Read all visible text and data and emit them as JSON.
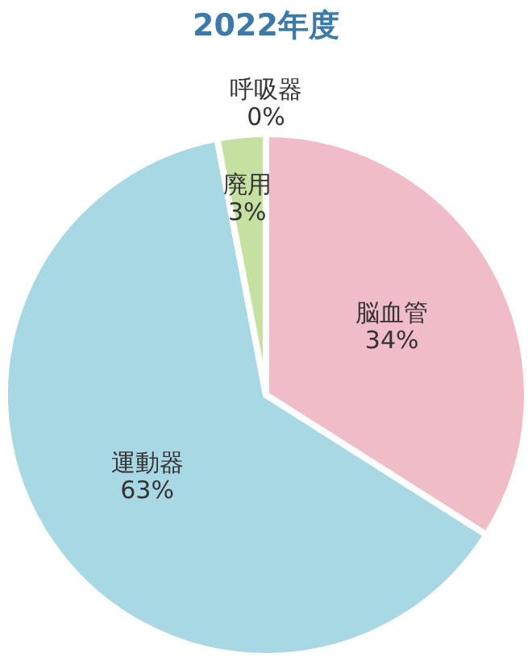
{
  "chart_data": {
    "type": "pie",
    "title": "2022年度",
    "categories": [
      "脳血管",
      "運動器",
      "廃用",
      "呼吸器"
    ],
    "values": [
      34,
      63,
      3,
      0
    ],
    "value_labels": [
      "34%",
      "63%",
      "3%",
      "0%"
    ],
    "colors": [
      "#f0bcc8",
      "#a8d8e4",
      "#c5e0a0",
      "#f3d9a0"
    ]
  }
}
